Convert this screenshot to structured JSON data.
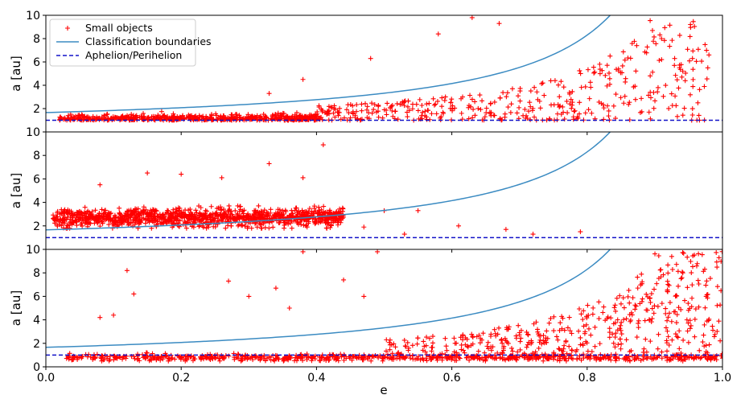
{
  "chart_data": [
    {
      "type": "scatter",
      "panel": "top",
      "xlabel": "",
      "ylabel": "a [au]",
      "xlim": [
        0,
        1
      ],
      "ylim": [
        0,
        10
      ],
      "yticks": [
        "2",
        "4",
        "6",
        "8",
        "10"
      ],
      "cloud": {
        "count": 1000,
        "e_range": [
          0.02,
          0.98
        ],
        "a_min": 1.0,
        "a_max_rule": "1/(1-e) + 0.6",
        "dense_band": "a in [1.0, 1.6] for e < 0.4",
        "color": "#ff0000"
      },
      "outliers": [
        [
          0.67,
          9.3
        ],
        [
          0.63,
          9.8
        ],
        [
          0.58,
          8.4
        ],
        [
          0.48,
          6.3
        ],
        [
          0.38,
          4.5
        ],
        [
          0.33,
          3.3
        ],
        [
          0.98,
          6.6
        ],
        [
          0.94,
          4.7
        ],
        [
          0.91,
          8.0
        ]
      ],
      "boundary": {
        "label": "Classification boundaries",
        "rule": "1.66/(1-e)",
        "color": "#3b8bc2"
      },
      "reference": {
        "label": "Aphelion/Perihelion",
        "y": 1.0,
        "color": "#1212c8"
      },
      "legend": {
        "position": "top-left",
        "entries": [
          {
            "label": "Small objects",
            "marker": "+",
            "color": "#ff0000"
          },
          {
            "label": "Classification boundaries",
            "color": "#3b8bc2"
          },
          {
            "label": "Aphelion/Perihelion",
            "style": "dashed",
            "color": "#1212c8"
          }
        ]
      }
    },
    {
      "type": "scatter",
      "panel": "middle",
      "xlabel": "",
      "ylabel": "a [au]",
      "xlim": [
        0,
        1
      ],
      "ylim": [
        0,
        10
      ],
      "yticks": [
        "2",
        "4",
        "6",
        "8",
        "10"
      ],
      "cloud": {
        "count": 1200,
        "e_range": [
          0.01,
          0.44
        ],
        "a_range": [
          1.8,
          3.6
        ],
        "color": "#ff0000"
      },
      "outliers": [
        [
          0.41,
          8.9
        ],
        [
          0.33,
          7.3
        ],
        [
          0.38,
          6.1
        ],
        [
          0.2,
          6.4
        ],
        [
          0.15,
          6.5
        ],
        [
          0.08,
          5.5
        ],
        [
          0.26,
          6.1
        ],
        [
          0.5,
          3.3
        ],
        [
          0.55,
          3.3
        ],
        [
          0.47,
          1.9
        ],
        [
          0.53,
          1.3
        ],
        [
          0.61,
          2.0
        ],
        [
          0.68,
          1.7
        ],
        [
          0.72,
          1.3
        ],
        [
          0.79,
          1.5
        ]
      ],
      "boundary": {
        "label": "Classification boundaries",
        "rule": "1.66/(1-e)",
        "color": "#3b8bc2"
      },
      "reference": {
        "label": "Aphelion/Perihelion",
        "y": 1.0,
        "color": "#1212c8"
      }
    },
    {
      "type": "scatter",
      "panel": "bottom",
      "xlabel": "e",
      "ylabel": "a [au]",
      "xlim": [
        0,
        1
      ],
      "ylim": [
        0,
        10
      ],
      "yticks": [
        "0",
        "2",
        "4",
        "6",
        "8",
        "10"
      ],
      "xticks": [
        "0.0",
        "0.2",
        "0.4",
        "0.6",
        "0.8",
        "1.0"
      ],
      "cloud": {
        "count": 1200,
        "e_range": [
          0.02,
          1.0
        ],
        "band": "a in [0.5, 1.25]",
        "scatter_above": "a up to 1/(1-e) for e > 0.55",
        "color": "#ff0000"
      },
      "outliers": [
        [
          0.12,
          8.2
        ],
        [
          0.13,
          6.2
        ],
        [
          0.08,
          4.2
        ],
        [
          0.1,
          4.4
        ],
        [
          0.27,
          7.3
        ],
        [
          0.38,
          9.8
        ],
        [
          0.49,
          9.8
        ],
        [
          0.44,
          7.4
        ],
        [
          0.47,
          6.0
        ],
        [
          0.3,
          6.0
        ],
        [
          0.34,
          6.7
        ],
        [
          0.36,
          5.0
        ]
      ],
      "boundary": {
        "label": "Classification boundaries",
        "rule": "1.66/(1-e)",
        "color": "#3b8bc2"
      },
      "reference": {
        "label": "Aphelion/Perihelion",
        "y": 1.0,
        "color": "#1212c8"
      }
    }
  ]
}
